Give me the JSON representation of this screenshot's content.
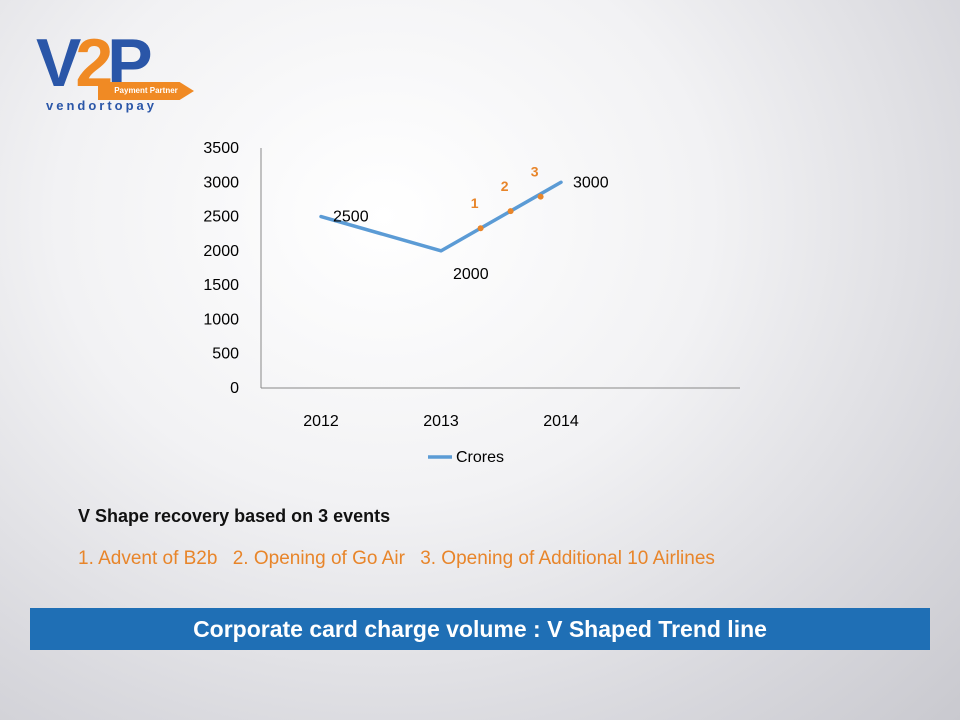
{
  "logo": {
    "text_v": "V",
    "text_2": "2",
    "text_p": "P",
    "tagline": "Payment Partner",
    "subtitle": "vendortopay"
  },
  "chart_data": {
    "type": "line",
    "categories": [
      "2012",
      "2013",
      "2014"
    ],
    "series": [
      {
        "name": "Crores",
        "values": [
          2500,
          2000,
          3000
        ],
        "color": "#5b9bd5"
      }
    ],
    "data_labels": [
      "2500",
      "2000",
      "3000"
    ],
    "y_ticks": [
      "0",
      "500",
      "1000",
      "1500",
      "2000",
      "2500",
      "3000",
      "3500"
    ],
    "ylim": [
      0,
      3500
    ],
    "grid": false,
    "legend": "bottom",
    "annotations": [
      {
        "label": "1",
        "x": 2013.33,
        "y": 2330
      },
      {
        "label": "2",
        "x": 2013.58,
        "y": 2580
      },
      {
        "label": "3",
        "x": 2013.83,
        "y": 2790
      }
    ],
    "annotation_color": "#e8852a"
  },
  "text": {
    "heading": "V Shape recovery based on 3 events",
    "events": [
      "1. Advent of B2b",
      "2. Opening of Go Air",
      "3. Opening of Additional 10 Airlines"
    ]
  },
  "banner": {
    "title": "Corporate card charge volume : V Shaped Trend line",
    "color": "#1f6fb5"
  }
}
